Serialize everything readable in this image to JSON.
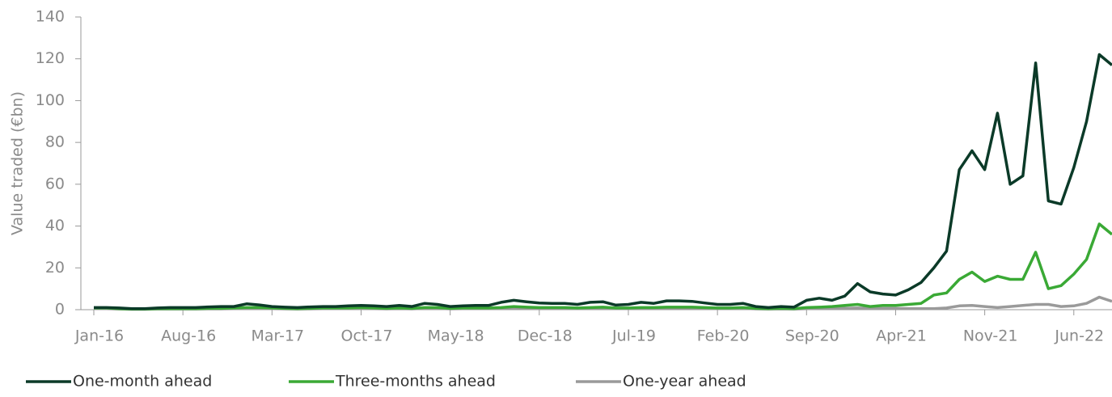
{
  "chart_data": {
    "type": "line",
    "ylabel": "Value traded (€bn)",
    "categories": [
      "Jan-16",
      null,
      null,
      null,
      null,
      null,
      null,
      "Aug-16",
      null,
      null,
      null,
      null,
      null,
      null,
      "Mar-17",
      null,
      null,
      null,
      null,
      null,
      null,
      "Oct-17",
      null,
      null,
      null,
      null,
      null,
      null,
      "May-18",
      null,
      null,
      null,
      null,
      null,
      null,
      "Dec-18",
      null,
      null,
      null,
      null,
      null,
      null,
      "Jul-19",
      null,
      null,
      null,
      null,
      null,
      null,
      "Feb-20",
      null,
      null,
      null,
      null,
      null,
      null,
      "Sep-20",
      null,
      null,
      null,
      null,
      null,
      null,
      "Apr-21",
      null,
      null,
      null,
      null,
      null,
      null,
      "Nov-21",
      null,
      null,
      null,
      null,
      null,
      null,
      "Jun-22",
      null,
      null,
      null
    ],
    "series": [
      {
        "name": "One-month ahead",
        "color": "#0b3a28",
        "values": [
          1,
          1,
          0.8,
          0.5,
          0.5,
          0.8,
          1,
          1,
          1,
          1.3,
          1.5,
          1.5,
          2.8,
          2.3,
          1.5,
          1.2,
          1,
          1.3,
          1.5,
          1.5,
          1.8,
          2,
          1.8,
          1.5,
          2,
          1.5,
          3,
          2.5,
          1.5,
          1.8,
          2,
          2,
          3.5,
          4.5,
          3.8,
          3.2,
          3,
          3,
          2.5,
          3.5,
          3.8,
          2.2,
          2.5,
          3.5,
          3,
          4.2,
          4.2,
          4,
          3.2,
          2.5,
          2.5,
          3,
          1.5,
          1,
          1.5,
          1.2,
          4.5,
          5.5,
          4.5,
          6.5,
          12.5,
          8.5,
          7.5,
          7,
          9.5,
          13,
          20,
          28,
          67,
          76,
          67,
          94,
          60,
          64,
          118,
          52,
          50.5,
          68,
          90,
          122,
          117
        ]
      },
      {
        "name": "Three-months ahead",
        "color": "#3aa935",
        "values": [
          0.8,
          0.8,
          0.5,
          0.3,
          0.3,
          0.5,
          0.5,
          0.5,
          0.5,
          0.6,
          0.6,
          0.8,
          1,
          1,
          0.8,
          0.6,
          0.5,
          0.6,
          0.8,
          0.8,
          0.8,
          1,
          0.8,
          0.6,
          0.8,
          0.6,
          1,
          1,
          0.6,
          0.8,
          0.8,
          0.8,
          1,
          1.5,
          1.2,
          1,
          1,
          1,
          0.8,
          1,
          1.2,
          0.8,
          0.8,
          1,
          1,
          1.2,
          1.2,
          1.2,
          1,
          0.8,
          0.8,
          1,
          0.6,
          0.5,
          0.6,
          0.5,
          1,
          1.2,
          1.5,
          2,
          2.5,
          1.5,
          2,
          2,
          2.5,
          3,
          7,
          8,
          14.5,
          18,
          13.5,
          16,
          14.5,
          14.5,
          27.5,
          10,
          11.5,
          17,
          24,
          41,
          36
        ]
      },
      {
        "name": "One-year ahead",
        "color": "#9a9a9a",
        "values": [
          0.5,
          0.5,
          0.3,
          0.2,
          0.2,
          0.3,
          0.3,
          0.3,
          0.3,
          0.4,
          0.4,
          0.5,
          0.6,
          0.6,
          0.5,
          0.4,
          0.3,
          0.4,
          0.5,
          0.5,
          0.5,
          0.6,
          0.5,
          0.4,
          0.5,
          0.4,
          0.6,
          0.6,
          0.4,
          0.5,
          0.5,
          0.5,
          0.6,
          0.8,
          0.7,
          0.6,
          0.6,
          0.6,
          0.5,
          0.6,
          0.7,
          0.5,
          0.5,
          0.6,
          0.6,
          0.7,
          0.7,
          0.7,
          0.6,
          0.5,
          0.5,
          0.6,
          0.4,
          0.3,
          0.4,
          0.3,
          0.5,
          0.6,
          0.6,
          0.7,
          0.8,
          0.6,
          0.6,
          0.6,
          0.5,
          0.5,
          0.5,
          0.8,
          1.8,
          2,
          1.5,
          1,
          1.5,
          2,
          2.5,
          2.5,
          1.5,
          1.8,
          3,
          6,
          4
        ]
      }
    ],
    "ylim": [
      0,
      140
    ],
    "yticks": [
      0,
      20,
      40,
      60,
      80,
      100,
      120,
      140
    ],
    "grid": false,
    "legend": "bottom"
  }
}
